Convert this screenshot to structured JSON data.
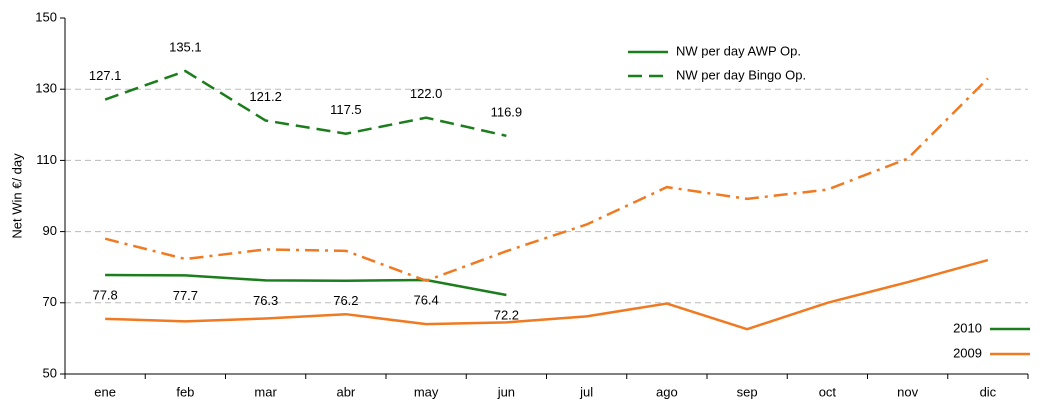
{
  "chart_data": {
    "type": "line",
    "y_label": "Net Win €/ day",
    "categories": [
      "ene",
      "feb",
      "mar",
      "abr",
      "may",
      "jun",
      "jul",
      "ago",
      "sep",
      "oct",
      "nov",
      "dic"
    ],
    "ylim": [
      50,
      150
    ],
    "yticks": [
      50,
      70,
      90,
      110,
      130,
      150
    ],
    "grid": true,
    "series": [
      {
        "color": "#1b7d1b",
        "dash": "solid",
        "label_position": "below",
        "values": [
          77.8,
          77.7,
          76.3,
          76.2,
          76.4,
          72.2,
          null,
          null,
          null,
          null,
          null,
          null
        ],
        "value_labels": [
          "77.8",
          "77.7",
          "76.3",
          "76.2",
          "76.4",
          "72.2",
          null,
          null,
          null,
          null,
          null,
          null
        ]
      },
      {
        "color": "#1b7d1b",
        "dash": "dash",
        "label_position": "above",
        "values": [
          127.1,
          135.1,
          121.2,
          117.5,
          122.0,
          116.9,
          null,
          null,
          null,
          null,
          null,
          null
        ],
        "value_labels": [
          "127.1",
          "135.1",
          "121.2",
          "117.5",
          "122.0",
          "116.9",
          null,
          null,
          null,
          null,
          null,
          null
        ]
      },
      {
        "color": "#f07a22",
        "dash": "solid",
        "values": [
          65.5,
          64.8,
          65.6,
          66.8,
          64.0,
          64.5,
          66.2,
          69.8,
          62.6,
          70.0,
          75.8,
          82.0
        ]
      },
      {
        "color": "#f07a22",
        "dash": "dashdot",
        "values": [
          88.0,
          82.3,
          85.0,
          84.6,
          76.2,
          84.5,
          92.0,
          102.5,
          99.2,
          101.8,
          110.5,
          133.0
        ]
      }
    ],
    "style_legend": [
      {
        "label": "NW per day AWP Op.",
        "dash": "solid",
        "color": "#1b7d1b"
      },
      {
        "label": "NW per day Bingo Op.",
        "dash": "dash",
        "color": "#1b7d1b"
      }
    ],
    "color_legend": [
      {
        "label": "2010",
        "color": "#1b7d1b"
      },
      {
        "label": "2009",
        "color": "#f07a22"
      }
    ]
  }
}
